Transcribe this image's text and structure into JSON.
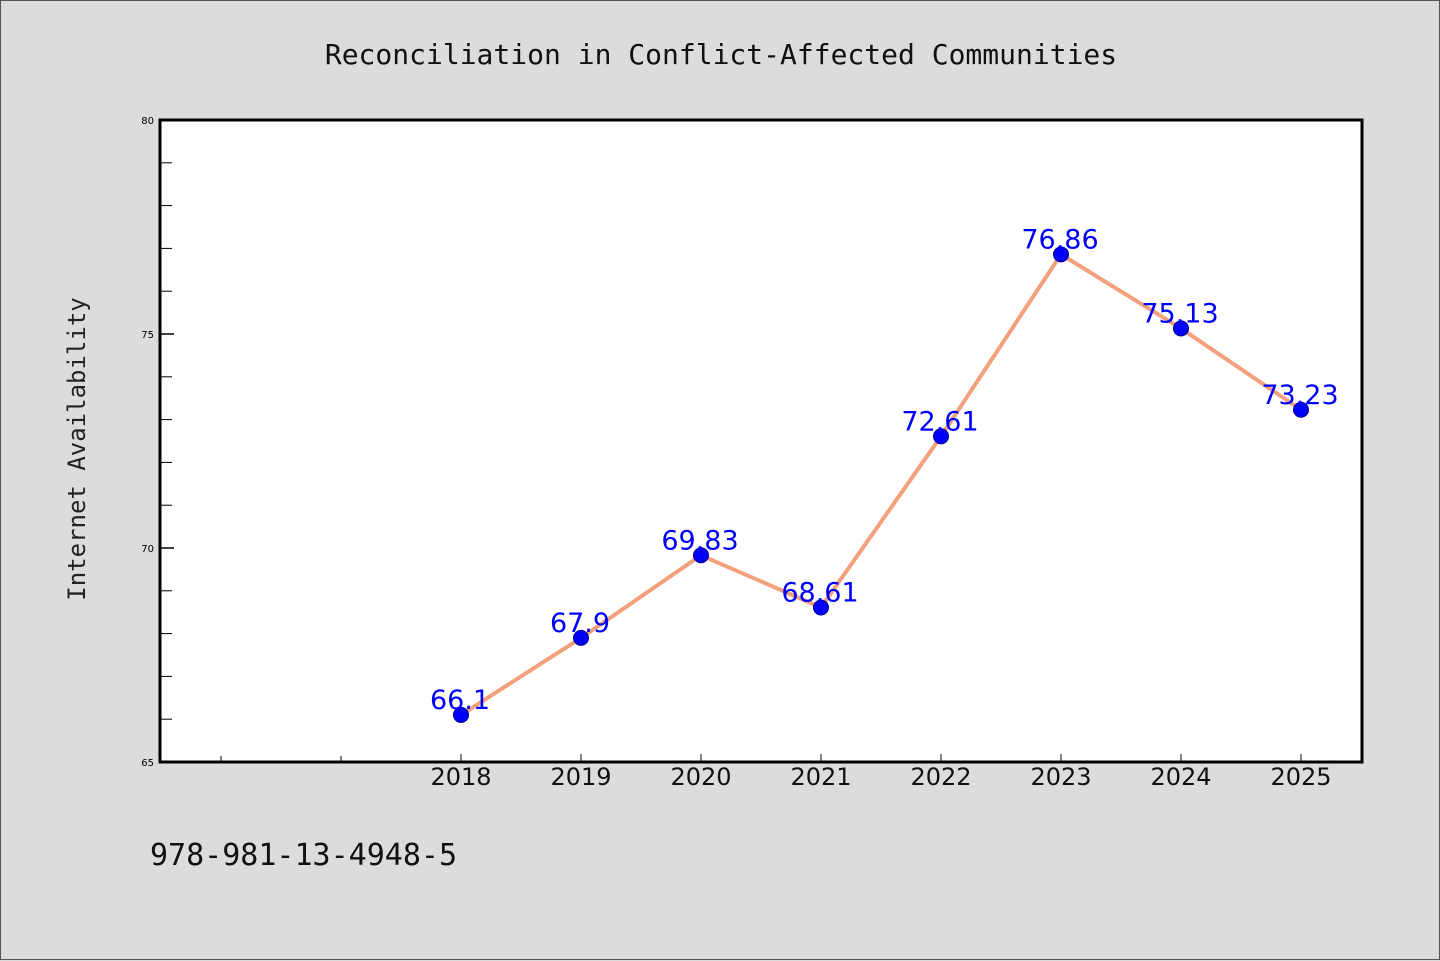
{
  "chart_data": {
    "type": "line",
    "title": "Reconciliation in Conflict-Affected Communities",
    "xlabel": "",
    "ylabel": "Internet Availability",
    "categories": [
      "2018",
      "2019",
      "2020",
      "2021",
      "2022",
      "2023",
      "2024",
      "2025"
    ],
    "series": [
      {
        "values": [
          66.1,
          67.9,
          69.83,
          68.61,
          72.61,
          76.86,
          75.13,
          73.23
        ]
      }
    ],
    "data_labels": [
      "66.1",
      "67.9",
      "69.83",
      "68.61",
      "72.61",
      "76.86",
      "75.13",
      "73.23"
    ],
    "ylim": [
      65,
      80
    ],
    "yticks": [
      "65",
      "70",
      "75",
      "80"
    ],
    "grid": false,
    "line_color": "#f4a07c",
    "marker_color": "#0000ff",
    "label_color": "#0000ff"
  },
  "footer": {
    "isbn": "978-981-13-4948-5"
  }
}
